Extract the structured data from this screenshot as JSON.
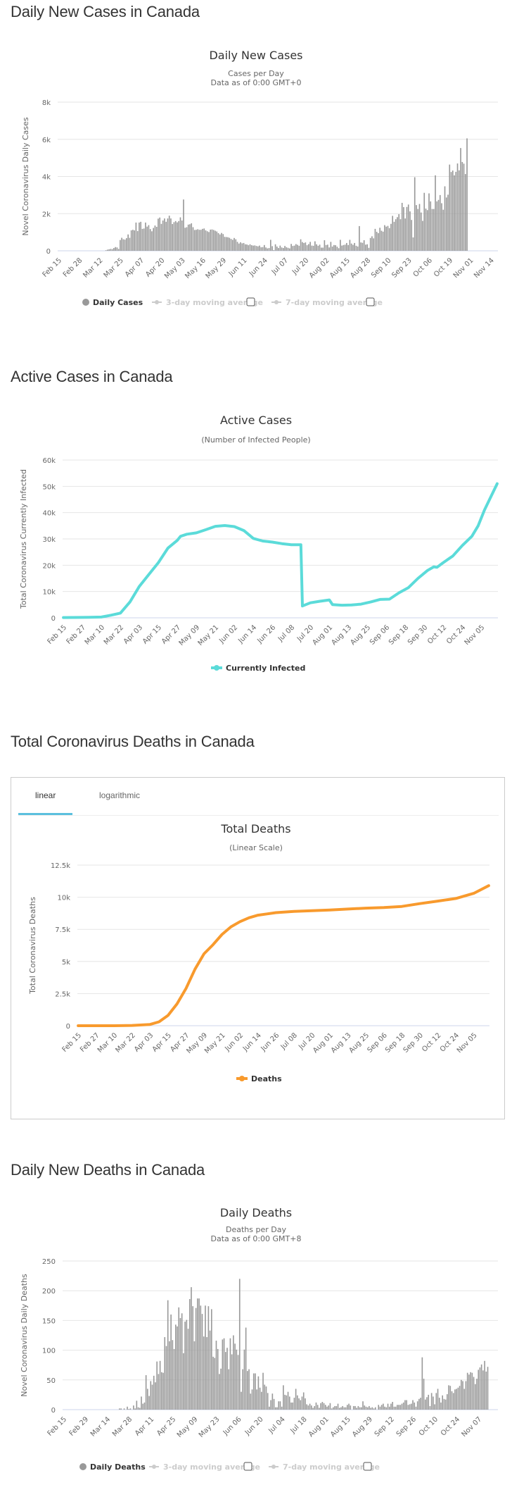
{
  "sections": {
    "daily_cases_title": "Daily New Cases in Canada",
    "active_cases_title": "Active Cases in Canada",
    "total_deaths_title": "Total Coronavirus Deaths in Canada",
    "daily_deaths_title": "Daily New Deaths in Canada"
  },
  "colors": {
    "bar": "#999999",
    "active_line": "#5bdbd9",
    "deaths_line": "#f89a2d",
    "tab_underline": "#5bc0de"
  },
  "deaths_tabs": {
    "active": "linear",
    "items": [
      {
        "label": "linear"
      },
      {
        "label": "logarithmic"
      }
    ]
  },
  "chart_data": [
    {
      "id": "daily_cases",
      "type": "bar",
      "title": "Daily New Cases",
      "subtitle_lines": [
        "Cases per Day",
        "Data as of 0:00 GMT+0"
      ],
      "ylabel": "Novel Coronavirus Daily Cases",
      "xlabel": "",
      "ylim": [
        0,
        8000
      ],
      "yticks": [
        0,
        2000,
        4000,
        6000,
        8000
      ],
      "ytick_labels": [
        "0",
        "2k",
        "4k",
        "6k",
        "8k"
      ],
      "xtick_labels": [
        "Feb 15",
        "Feb 28",
        "Mar 12",
        "Mar 25",
        "Apr 07",
        "Apr 20",
        "May 03",
        "May 16",
        "May 29",
        "Jun 11",
        "Jun 24",
        "Jul 07",
        "Jul 20",
        "Aug 02",
        "Aug 15",
        "Aug 28",
        "Sep 10",
        "Sep 23",
        "Oct 06",
        "Oct 19",
        "Nov 01",
        "Nov 14"
      ],
      "x_start": "Feb 15",
      "grid": true,
      "legend": {
        "placement": "bottom-center",
        "items": [
          {
            "label": "Daily Cases",
            "active": true
          },
          {
            "label": "3-day moving average",
            "active": false,
            "checkbox": true
          },
          {
            "label": "7-day moving average",
            "active": false,
            "checkbox": true
          }
        ]
      },
      "values": [
        0,
        0,
        0,
        0,
        0,
        0,
        0,
        0,
        0,
        0,
        0,
        0,
        0,
        0,
        0,
        0,
        0,
        0,
        0,
        0,
        0,
        0,
        0,
        0,
        0,
        0,
        0,
        0,
        0,
        0,
        30,
        60,
        80,
        100,
        90,
        150,
        200,
        180,
        100,
        580,
        700,
        620,
        600,
        680,
        880,
        700,
        1100,
        1130,
        1100,
        1520,
        1060,
        1520,
        1560,
        1180,
        1200,
        1520,
        1300,
        1380,
        1170,
        1050,
        1230,
        1360,
        1290,
        1730,
        1790,
        1450,
        1630,
        1740,
        1560,
        1740,
        1890,
        1740,
        1440,
        1540,
        1600,
        1530,
        1600,
        1800,
        1630,
        2760,
        1240,
        1270,
        1410,
        1430,
        1480,
        1270,
        1120,
        1130,
        1160,
        1130,
        1130,
        1180,
        1200,
        1100,
        1050,
        1010,
        1140,
        1150,
        1120,
        1080,
        1040,
        950,
        880,
        960,
        900,
        750,
        740,
        730,
        700,
        640,
        590,
        690,
        620,
        480,
        390,
        460,
        400,
        420,
        350,
        340,
        300,
        350,
        300,
        280,
        290,
        260,
        240,
        280,
        190,
        200,
        310,
        180,
        130,
        150,
        590,
        250,
        40,
        350,
        230,
        150,
        280,
        180,
        150,
        260,
        190,
        160,
        130,
        370,
        260,
        280,
        360,
        320,
        270,
        620,
        470,
        420,
        450,
        300,
        360,
        480,
        280,
        270,
        510,
        350,
        270,
        330,
        170,
        170,
        570,
        310,
        330,
        180,
        480,
        230,
        310,
        300,
        220,
        140,
        590,
        280,
        310,
        330,
        420,
        310,
        590,
        390,
        320,
        420,
        270,
        230,
        1330,
        450,
        430,
        570,
        330,
        350,
        160,
        690,
        780,
        670,
        1180,
        1020,
        950,
        1240,
        1080,
        1030,
        1380,
        1300,
        1340,
        1220,
        1450,
        1880,
        1560,
        1700,
        1810,
        1970,
        1700,
        2580,
        2350,
        1740,
        2360,
        2490,
        2120,
        1660,
        720,
        3960,
        2460,
        2250,
        2520,
        2060,
        1610,
        3120,
        2270,
        2190,
        3090,
        2660,
        2250,
        2250,
        4060,
        2660,
        2740,
        3000,
        2560,
        2210,
        3470,
        2870,
        3020,
        4640,
        4240,
        4320,
        4060,
        4250,
        4700,
        4330,
        5530,
        4780,
        4690,
        4130,
        6050
      ]
    },
    {
      "id": "active_cases",
      "type": "line",
      "title": "Active Cases",
      "subtitle_lines": [
        "(Number of Infected People)"
      ],
      "ylabel": "Total Coronavirus Currently Infected",
      "xlabel": "",
      "ylim": [
        0,
        60000
      ],
      "yticks": [
        0,
        10000,
        20000,
        30000,
        40000,
        50000,
        60000
      ],
      "ytick_labels": [
        "0",
        "10k",
        "20k",
        "30k",
        "40k",
        "50k",
        "60k"
      ],
      "xtick_labels": [
        "Feb 15",
        "Feb 27",
        "Mar 10",
        "Mar 22",
        "Apr 03",
        "Apr 15",
        "Apr 27",
        "May 09",
        "May 21",
        "Jun 02",
        "Jun 14",
        "Jun 26",
        "Jul 08",
        "Jul 20",
        "Aug 01",
        "Aug 13",
        "Aug 25",
        "Sep 06",
        "Sep 18",
        "Sep 30",
        "Oct 12",
        "Oct 24",
        "Nov 05"
      ],
      "grid": true,
      "legend": {
        "placement": "bottom-center",
        "items": [
          {
            "label": "Currently Infected"
          }
        ]
      },
      "series": [
        {
          "name": "Currently Infected",
          "points_day_value": [
            [
              0,
              100
            ],
            [
              12,
              150
            ],
            [
              24,
              300
            ],
            [
              30,
              1000
            ],
            [
              36,
              1800
            ],
            [
              42,
              6000
            ],
            [
              48,
              12000
            ],
            [
              54,
              16500
            ],
            [
              60,
              21000
            ],
            [
              66,
              26500
            ],
            [
              72,
              29500
            ],
            [
              74,
              31000
            ],
            [
              78,
              31800
            ],
            [
              84,
              32300
            ],
            [
              90,
              33500
            ],
            [
              96,
              34800
            ],
            [
              102,
              35100
            ],
            [
              108,
              34700
            ],
            [
              114,
              33200
            ],
            [
              120,
              30200
            ],
            [
              126,
              29200
            ],
            [
              132,
              28800
            ],
            [
              138,
              28200
            ],
            [
              144,
              27800
            ],
            [
              150,
              27800
            ],
            [
              151,
              4500
            ],
            [
              156,
              5700
            ],
            [
              162,
              6300
            ],
            [
              168,
              6800
            ],
            [
              170,
              5000
            ],
            [
              176,
              4800
            ],
            [
              182,
              4900
            ],
            [
              188,
              5200
            ],
            [
              194,
              6000
            ],
            [
              200,
              7000
            ],
            [
              206,
              7100
            ],
            [
              212,
              9500
            ],
            [
              218,
              11500
            ],
            [
              224,
              15000
            ],
            [
              230,
              18000
            ],
            [
              234,
              19400
            ],
            [
              236,
              19200
            ],
            [
              240,
              21000
            ],
            [
              246,
              23500
            ],
            [
              252,
              27500
            ],
            [
              258,
              31000
            ],
            [
              262,
              35000
            ],
            [
              266,
              41000
            ],
            [
              270,
              46000
            ],
            [
              274,
              51000
            ]
          ]
        }
      ]
    },
    {
      "id": "total_deaths",
      "type": "line",
      "title": "Total Deaths",
      "subtitle_lines": [
        "(Linear Scale)"
      ],
      "ylabel": "Total Coronavirus Deaths",
      "xlabel": "",
      "ylim": [
        0,
        12500
      ],
      "yticks": [
        0,
        2500,
        5000,
        7500,
        10000,
        12500
      ],
      "ytick_labels": [
        "0",
        "2.5k",
        "5k",
        "7.5k",
        "10k",
        "12.5k"
      ],
      "xtick_labels": [
        "Feb 15",
        "Feb 27",
        "Mar 10",
        "Mar 22",
        "Apr 03",
        "Apr 15",
        "Apr 27",
        "May 09",
        "May 21",
        "Jun 02",
        "Jun 14",
        "Jun 26",
        "Jul 08",
        "Jul 20",
        "Aug 01",
        "Aug 13",
        "Aug 25",
        "Sep 06",
        "Sep 18",
        "Sep 30",
        "Oct 12",
        "Oct 24",
        "Nov 05"
      ],
      "grid": true,
      "legend": {
        "placement": "bottom-center",
        "items": [
          {
            "label": "Deaths"
          }
        ]
      },
      "series": [
        {
          "name": "Deaths",
          "points_day_value": [
            [
              0,
              0
            ],
            [
              24,
              2
            ],
            [
              36,
              20
            ],
            [
              48,
              100
            ],
            [
              54,
              300
            ],
            [
              60,
              800
            ],
            [
              66,
              1700
            ],
            [
              72,
              2900
            ],
            [
              78,
              4400
            ],
            [
              84,
              5600
            ],
            [
              90,
              6300
            ],
            [
              96,
              7100
            ],
            [
              102,
              7700
            ],
            [
              108,
              8100
            ],
            [
              114,
              8400
            ],
            [
              120,
              8600
            ],
            [
              126,
              8700
            ],
            [
              132,
              8800
            ],
            [
              144,
              8900
            ],
            [
              156,
              8950
            ],
            [
              168,
              9000
            ],
            [
              180,
              9080
            ],
            [
              192,
              9150
            ],
            [
              204,
              9200
            ],
            [
              216,
              9280
            ],
            [
              228,
              9500
            ],
            [
              240,
              9700
            ],
            [
              252,
              9900
            ],
            [
              264,
              10300
            ],
            [
              274,
              10900
            ]
          ]
        }
      ]
    },
    {
      "id": "daily_deaths",
      "type": "bar",
      "title": "Daily Deaths",
      "subtitle_lines": [
        "Deaths per Day",
        "Data as of 0:00 GMT+8"
      ],
      "ylabel": "Novel Coronavirus Daily Deaths",
      "xlabel": "",
      "ylim": [
        0,
        250
      ],
      "yticks": [
        0,
        50,
        100,
        150,
        200,
        250
      ],
      "ytick_labels": [
        "0",
        "50",
        "100",
        "150",
        "200",
        "250"
      ],
      "xtick_labels": [
        "Feb 15",
        "Feb 29",
        "Mar 14",
        "Mar 28",
        "Apr 11",
        "Apr 25",
        "May 09",
        "May 23",
        "Jun 06",
        "Jun 20",
        "Jul 04",
        "Jul 18",
        "Aug 01",
        "Aug 15",
        "Aug 29",
        "Sep 12",
        "Sep 26",
        "Oct 10",
        "Oct 24",
        "Nov 07"
      ],
      "grid": true,
      "legend": {
        "placement": "bottom-center",
        "items": [
          {
            "label": "Daily Deaths",
            "active": true
          },
          {
            "label": "3-day moving average",
            "active": false,
            "checkbox": true
          },
          {
            "label": "7-day moving average",
            "active": false,
            "checkbox": true
          }
        ]
      },
      "values": [
        0,
        0,
        0,
        0,
        0,
        0,
        0,
        0,
        0,
        0,
        0,
        0,
        0,
        0,
        0,
        0,
        0,
        0,
        0,
        0,
        0,
        0,
        0,
        0,
        0,
        0,
        0,
        0,
        0,
        0,
        0,
        0,
        0,
        0,
        0,
        0,
        2,
        2,
        0,
        2,
        0,
        5,
        1,
        2,
        0,
        7,
        2,
        15,
        4,
        3,
        22,
        10,
        12,
        58,
        35,
        23,
        48,
        42,
        57,
        46,
        81,
        60,
        82,
        63,
        62,
        122,
        107,
        184,
        115,
        160,
        117,
        102,
        143,
        140,
        172,
        154,
        162,
        95,
        148,
        151,
        136,
        186,
        206,
        174,
        115,
        171,
        187,
        187,
        175,
        161,
        123,
        175,
        122,
        174,
        133,
        169,
        89,
        87,
        116,
        102,
        60,
        69,
        118,
        120,
        97,
        104,
        68,
        120,
        93,
        125,
        111,
        101,
        92,
        220,
        30,
        68,
        101,
        138,
        65,
        68,
        27,
        34,
        61,
        61,
        34,
        56,
        37,
        30,
        62,
        42,
        39,
        28,
        5,
        16,
        27,
        18,
        4,
        4,
        14,
        14,
        5,
        41,
        25,
        24,
        30,
        22,
        12,
        12,
        20,
        35,
        24,
        19,
        16,
        22,
        29,
        19,
        9,
        7,
        10,
        7,
        3,
        6,
        12,
        8,
        3,
        11,
        13,
        11,
        8,
        5,
        7,
        11,
        2,
        4,
        6,
        6,
        10,
        3,
        4,
        6,
        4,
        4,
        8,
        10,
        7,
        0,
        6,
        6,
        3,
        6,
        4,
        4,
        14,
        7,
        5,
        4,
        6,
        3,
        4,
        2,
        4,
        0,
        8,
        5,
        8,
        10,
        5,
        4,
        10,
        5,
        10,
        13,
        5,
        5,
        8,
        8,
        8,
        10,
        12,
        16,
        16,
        8,
        9,
        10,
        16,
        12,
        5,
        14,
        18,
        20,
        88,
        52,
        17,
        21,
        25,
        6,
        28,
        22,
        9,
        28,
        35,
        20,
        12,
        24,
        18,
        17,
        26,
        41,
        40,
        31,
        28,
        34,
        35,
        37,
        40,
        50,
        48,
        35,
        48,
        62,
        59,
        63,
        62,
        55,
        43,
        52,
        67,
        71,
        76,
        66,
        82,
        64,
        72
      ]
    }
  ]
}
